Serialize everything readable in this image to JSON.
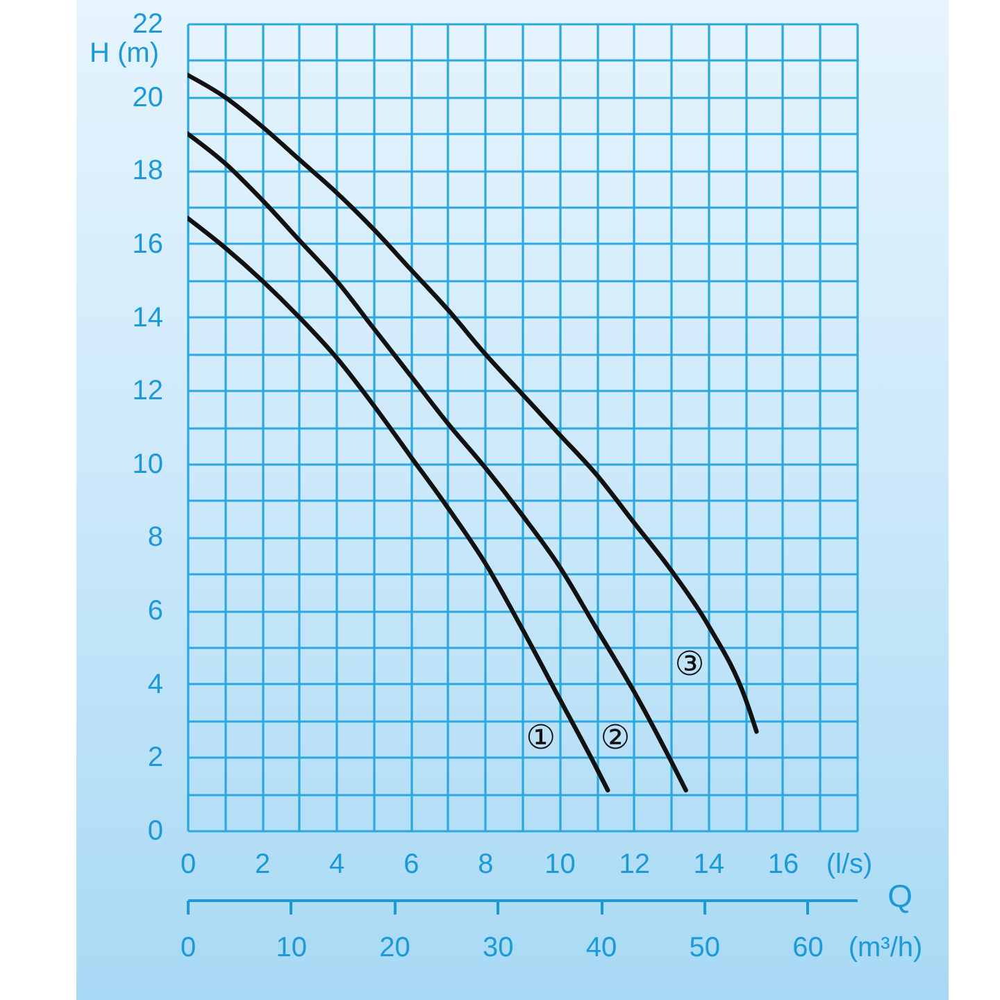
{
  "chart_data": {
    "type": "line",
    "ylabel": "H (m)",
    "xlabel": "(l/s)",
    "x2label": "(m³/h)",
    "annotations": [
      "Q"
    ],
    "xlim": [
      0,
      18
    ],
    "xticks": [
      0,
      {
        "value": 1,
        "label": null
      },
      2,
      {
        "value": 3,
        "label": null
      },
      4,
      {
        "value": 5,
        "label": null
      },
      6,
      {
        "value": 7,
        "label": null
      },
      8,
      {
        "value": 9,
        "label": null
      },
      10,
      {
        "value": 11,
        "label": null
      },
      12,
      {
        "value": 13,
        "label": null
      },
      14,
      {
        "value": 15,
        "label": null
      },
      16,
      {
        "value": 17,
        "label": null
      },
      {
        "value": 18,
        "label": null
      }
    ],
    "ylim": [
      0,
      22
    ],
    "yticks": [
      0,
      {
        "value": 1,
        "label": null
      },
      2,
      {
        "value": 3,
        "label": null
      },
      4,
      {
        "value": 5,
        "label": null
      },
      6,
      {
        "value": 7,
        "label": null
      },
      8,
      {
        "value": 9,
        "label": null
      },
      10,
      {
        "value": 11,
        "label": null
      },
      12,
      {
        "value": 13,
        "label": null
      },
      14,
      {
        "value": 15,
        "label": null
      },
      16,
      {
        "value": 17,
        "label": null
      },
      18,
      {
        "value": 19,
        "label": null
      },
      20,
      {
        "value": 21,
        "label": null
      },
      22
    ],
    "x2lim": [
      0,
      64.8
    ],
    "x2ticks": [
      0,
      10,
      20,
      30,
      40,
      50,
      60
    ],
    "grid": true,
    "series": [
      {
        "name": "①",
        "color": "#111111",
        "x": [
          0,
          1,
          2,
          3,
          4,
          5,
          6,
          7,
          8,
          9,
          10,
          11,
          11.3
        ],
        "values": [
          16.7,
          15.9,
          15.0,
          14.0,
          12.9,
          11.6,
          10.2,
          8.8,
          7.3,
          5.5,
          3.6,
          1.7,
          1.1
        ]
      },
      {
        "name": "②",
        "color": "#111111",
        "x": [
          0,
          1,
          2,
          3,
          4,
          5,
          6,
          7,
          8,
          9,
          10,
          11,
          12,
          13,
          13.4
        ],
        "values": [
          19.0,
          18.2,
          17.2,
          16.1,
          15.0,
          13.7,
          12.4,
          11.1,
          9.9,
          8.6,
          7.2,
          5.5,
          3.8,
          1.9,
          1.1
        ]
      },
      {
        "name": "③",
        "color": "#111111",
        "x": [
          0,
          1,
          2,
          3,
          4,
          5,
          6,
          7,
          8,
          9,
          10,
          11,
          12,
          13,
          14,
          15,
          15.3
        ],
        "values": [
          20.6,
          20.0,
          19.2,
          18.3,
          17.4,
          16.4,
          15.3,
          14.2,
          13.0,
          11.9,
          10.8,
          9.7,
          8.4,
          7.1,
          5.6,
          3.6,
          2.7
        ]
      }
    ]
  }
}
